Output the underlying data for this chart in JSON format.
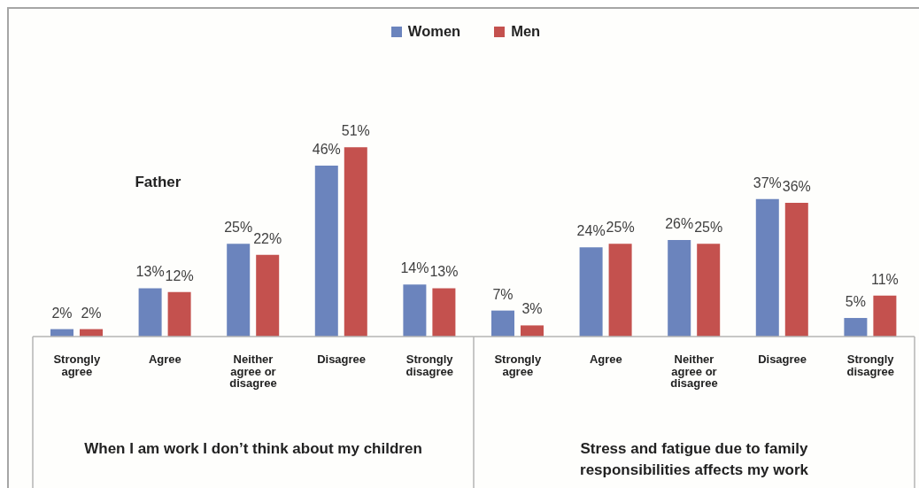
{
  "chart_data": {
    "type": "bar",
    "categories": [
      "Strongly agree",
      "Agree",
      "Neither agree or disagree",
      "Disagree",
      "Strongly disagree",
      "Strongly agree",
      "Agree",
      "Neither agree or disagree",
      "Disagree",
      "Strongly disagree"
    ],
    "series": [
      {
        "name": "Women",
        "color": "#6b84bd",
        "values": [
          2,
          13,
          25,
          46,
          14,
          7,
          24,
          26,
          37,
          5
        ],
        "value_labels": [
          "2%",
          "13%",
          "25%",
          "46%",
          "14%",
          "7%",
          "24%",
          "26%",
          "37%",
          "5%"
        ]
      },
      {
        "name": "Men",
        "color": "#c4514e",
        "values": [
          2,
          12,
          22,
          51,
          13,
          3,
          25,
          25,
          36,
          11
        ],
        "value_labels": [
          "2%",
          "12%",
          "22%",
          "51%",
          "13%",
          "3%",
          "25%",
          "25%",
          "36%",
          "11%"
        ]
      }
    ],
    "legend": "top",
    "annotations": [
      "Father",
      "When I am work I don’t think about my children",
      "Stress and fatigue due to family responsibilities affects my work"
    ]
  }
}
